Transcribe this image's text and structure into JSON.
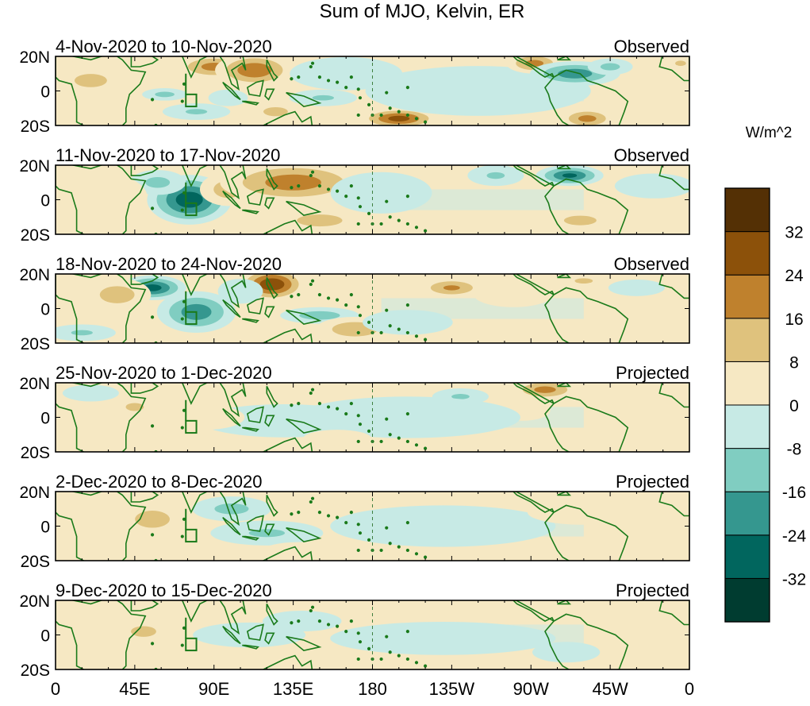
{
  "chart_data": {
    "type": "heatmap",
    "title": "Sum of MJO, Kelvin, ER",
    "units": "W/m^2",
    "colorbar": {
      "levels": [
        -40,
        -32,
        -24,
        -16,
        -8,
        0,
        8,
        16,
        24,
        32,
        40
      ],
      "tick_labels": [
        "-32",
        "-24",
        "-16",
        "-8",
        "0",
        "8",
        "16",
        "24",
        "32"
      ],
      "colors": [
        "#003c30",
        "#01665e",
        "#35978f",
        "#80cdc1",
        "#c7eae5",
        "#f6e8c3",
        "#dfc27d",
        "#bf812d",
        "#8c510a",
        "#543005"
      ]
    },
    "x_ticks": [
      {
        "lon": 0,
        "label": "0"
      },
      {
        "lon": 45,
        "label": "45E"
      },
      {
        "lon": 90,
        "label": "90E"
      },
      {
        "lon": 135,
        "label": "135E"
      },
      {
        "lon": 180,
        "label": "180"
      },
      {
        "lon": 225,
        "label": "135W"
      },
      {
        "lon": 270,
        "label": "90W"
      },
      {
        "lon": 315,
        "label": "45W"
      },
      {
        "lon": 360,
        "label": "0"
      }
    ],
    "y_ticks": [
      {
        "lat": 20,
        "label": "20N"
      },
      {
        "lat": 0,
        "label": "0"
      },
      {
        "lat": -20,
        "label": "20S"
      }
    ],
    "xlim": [
      0,
      360
    ],
    "ylim": [
      -20,
      20
    ],
    "dateline_lon": 180,
    "panels": [
      {
        "period": "4-Nov-2020 to 10-Nov-2020",
        "status": "Observed",
        "anomalies": [
          {
            "lon": 90,
            "lat": 14,
            "value": 20,
            "rlon": 14,
            "rlat": 6
          },
          {
            "lon": 113,
            "lat": 12,
            "value": 24,
            "rlon": 14,
            "rlat": 8
          },
          {
            "lon": 62,
            "lat": -2,
            "value": -12,
            "rlon": 8,
            "rlat": 3
          },
          {
            "lon": 80,
            "lat": -12,
            "value": -10,
            "rlon": 12,
            "rlat": 4
          },
          {
            "lon": 98,
            "lat": -4,
            "value": -8,
            "rlon": 7,
            "rlat": 4
          },
          {
            "lon": 125,
            "lat": -12,
            "value": 12,
            "rlon": 10,
            "rlat": 5
          },
          {
            "lon": 152,
            "lat": -4,
            "value": -10,
            "rlon": 12,
            "rlat": 4
          },
          {
            "lon": 165,
            "lat": 10,
            "value": -6,
            "rlon": 20,
            "rlat": 8
          },
          {
            "lon": 195,
            "lat": -16,
            "value": 28,
            "rlon": 14,
            "rlat": 5
          },
          {
            "lon": 240,
            "lat": 0,
            "value": -6,
            "rlon": 40,
            "rlat": 12
          },
          {
            "lon": 272,
            "lat": 16,
            "value": 20,
            "rlon": 10,
            "rlat": 5
          },
          {
            "lon": 295,
            "lat": 10,
            "value": -22,
            "rlon": 16,
            "rlat": 6
          },
          {
            "lon": 302,
            "lat": -16,
            "value": 20,
            "rlon": 10,
            "rlat": 5
          },
          {
            "lon": 315,
            "lat": 14,
            "value": -12,
            "rlon": 8,
            "rlat": 4
          },
          {
            "lon": 20,
            "lat": 6,
            "value": 10,
            "rlon": 18,
            "rlat": 10
          },
          {
            "lon": 355,
            "lat": 16,
            "value": 10,
            "rlon": 6,
            "rlat": 4
          }
        ]
      },
      {
        "period": "11-Nov-2020 to 17-Nov-2020",
        "status": "Observed",
        "anomalies": [
          {
            "lon": 76,
            "lat": 0,
            "value": -30,
            "rlon": 15,
            "rlat": 12
          },
          {
            "lon": 58,
            "lat": 10,
            "value": -12,
            "rlon": 10,
            "rlat": 6
          },
          {
            "lon": 98,
            "lat": 6,
            "value": 14,
            "rlon": 10,
            "rlat": 8
          },
          {
            "lon": 135,
            "lat": 10,
            "value": 22,
            "rlon": 26,
            "rlat": 10
          },
          {
            "lon": 150,
            "lat": -12,
            "value": 16,
            "rlon": 14,
            "rlat": 5
          },
          {
            "lon": 185,
            "lat": 4,
            "value": -6,
            "rlon": 18,
            "rlat": 10
          },
          {
            "lon": 210,
            "lat": -14,
            "value": 8,
            "rlon": 12,
            "rlat": 4
          },
          {
            "lon": 250,
            "lat": 14,
            "value": -10,
            "rlon": 10,
            "rlat": 5
          },
          {
            "lon": 292,
            "lat": 14,
            "value": -26,
            "rlon": 12,
            "rlat": 5
          },
          {
            "lon": 298,
            "lat": -12,
            "value": 16,
            "rlon": 10,
            "rlat": 4
          },
          {
            "lon": 20,
            "lat": 2,
            "value": 6,
            "rlon": 20,
            "rlat": 12
          },
          {
            "lon": 340,
            "lat": 8,
            "value": -6,
            "rlon": 14,
            "rlat": 6
          }
        ]
      },
      {
        "period": "18-Nov-2020 to 24-Nov-2020",
        "status": "Observed",
        "anomalies": [
          {
            "lon": 123,
            "lat": 14,
            "value": 32,
            "rlon": 12,
            "rlat": 8
          },
          {
            "lon": 55,
            "lat": 12,
            "value": -28,
            "rlon": 12,
            "rlat": 6
          },
          {
            "lon": 80,
            "lat": -2,
            "value": -22,
            "rlon": 14,
            "rlat": 10
          },
          {
            "lon": 35,
            "lat": 8,
            "value": 14,
            "rlon": 12,
            "rlat": 8
          },
          {
            "lon": 105,
            "lat": 10,
            "value": -8,
            "rlon": 8,
            "rlat": 6
          },
          {
            "lon": 150,
            "lat": -4,
            "value": -14,
            "rlon": 14,
            "rlat": 4
          },
          {
            "lon": 170,
            "lat": -12,
            "value": 16,
            "rlon": 14,
            "rlat": 6
          },
          {
            "lon": 225,
            "lat": 12,
            "value": 18,
            "rlon": 12,
            "rlat": 5
          },
          {
            "lon": 260,
            "lat": 8,
            "value": 6,
            "rlon": 14,
            "rlat": 6
          },
          {
            "lon": 300,
            "lat": 16,
            "value": 10,
            "rlon": 10,
            "rlat": 4
          },
          {
            "lon": 330,
            "lat": 12,
            "value": -8,
            "rlon": 10,
            "rlat": 4
          },
          {
            "lon": 15,
            "lat": -14,
            "value": -10,
            "rlon": 12,
            "rlat": 4
          },
          {
            "lon": 200,
            "lat": -8,
            "value": -6,
            "rlon": 16,
            "rlat": 6
          }
        ]
      },
      {
        "period": "25-Nov-2020 to 1-Dec-2020",
        "status": "Projected",
        "anomalies": [
          {
            "lon": 278,
            "lat": 16,
            "value": 20,
            "rlon": 12,
            "rlat": 5
          },
          {
            "lon": 265,
            "lat": 4,
            "value": 8,
            "rlon": 10,
            "rlat": 5
          },
          {
            "lon": 230,
            "lat": 12,
            "value": -10,
            "rlon": 10,
            "rlat": 4
          },
          {
            "lon": 200,
            "lat": 0,
            "value": -6,
            "rlon": 40,
            "rlat": 10
          },
          {
            "lon": 130,
            "lat": -2,
            "value": -6,
            "rlon": 30,
            "rlat": 8
          },
          {
            "lon": 45,
            "lat": 6,
            "value": 10,
            "rlon": 10,
            "rlat": 6
          },
          {
            "lon": 85,
            "lat": 0,
            "value": 6,
            "rlon": 14,
            "rlat": 6
          },
          {
            "lon": 160,
            "lat": -12,
            "value": 8,
            "rlon": 12,
            "rlat": 4
          },
          {
            "lon": 20,
            "lat": 14,
            "value": -6,
            "rlon": 10,
            "rlat": 4
          }
        ]
      },
      {
        "period": "2-Dec-2020 to 8-Dec-2020",
        "status": "Projected",
        "anomalies": [
          {
            "lon": 55,
            "lat": 4,
            "value": 14,
            "rlon": 12,
            "rlat": 8
          },
          {
            "lon": 100,
            "lat": 10,
            "value": -12,
            "rlon": 14,
            "rlat": 6
          },
          {
            "lon": 120,
            "lat": -4,
            "value": -10,
            "rlon": 20,
            "rlat": 6
          },
          {
            "lon": 160,
            "lat": 8,
            "value": 8,
            "rlon": 16,
            "rlat": 5
          },
          {
            "lon": 220,
            "lat": 0,
            "value": -6,
            "rlon": 40,
            "rlat": 10
          },
          {
            "lon": 140,
            "lat": -14,
            "value": 6,
            "rlon": 14,
            "rlat": 4
          },
          {
            "lon": 20,
            "lat": -8,
            "value": 6,
            "rlon": 12,
            "rlat": 6
          },
          {
            "lon": 300,
            "lat": 8,
            "value": 6,
            "rlon": 20,
            "rlat": 6
          }
        ]
      },
      {
        "period": "9-Dec-2020 to 15-Dec-2020",
        "status": "Projected",
        "anomalies": [
          {
            "lon": 50,
            "lat": 2,
            "value": 10,
            "rlon": 14,
            "rlat": 8
          },
          {
            "lon": 110,
            "lat": 0,
            "value": -8,
            "rlon": 20,
            "rlat": 6
          },
          {
            "lon": 140,
            "lat": 8,
            "value": -6,
            "rlon": 14,
            "rlat": 5
          },
          {
            "lon": 170,
            "lat": -8,
            "value": 8,
            "rlon": 16,
            "rlat": 5
          },
          {
            "lon": 220,
            "lat": -2,
            "value": -6,
            "rlon": 40,
            "rlat": 8
          },
          {
            "lon": 290,
            "lat": -10,
            "value": -8,
            "rlon": 12,
            "rlat": 5
          },
          {
            "lon": 20,
            "lat": 12,
            "value": 6,
            "rlon": 10,
            "rlat": 5
          },
          {
            "lon": 330,
            "lat": 10,
            "value": 6,
            "rlon": 12,
            "rlat": 5
          }
        ]
      }
    ]
  }
}
